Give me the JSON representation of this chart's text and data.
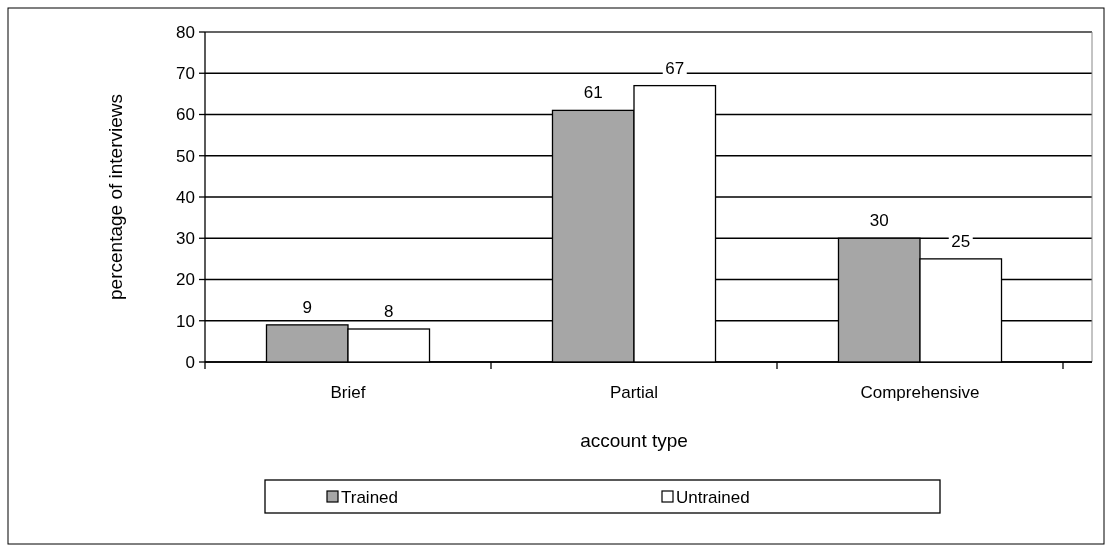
{
  "chart_data": {
    "type": "bar",
    "xlabel": "account type",
    "ylabel": "percentage of interviews",
    "categories": [
      "Brief",
      "Partial",
      "Comprehensive"
    ],
    "series": [
      {
        "name": "Trained",
        "color": "#a6a6a6",
        "values": [
          9,
          61,
          30
        ]
      },
      {
        "name": "Untrained",
        "color": "#ffffff",
        "values": [
          8,
          67,
          25
        ]
      }
    ],
    "ylim": [
      0,
      80
    ],
    "yticks": [
      0,
      10,
      20,
      30,
      40,
      50,
      60,
      70,
      80
    ],
    "grid": "y",
    "legend": "bottom",
    "data_labels": true
  }
}
